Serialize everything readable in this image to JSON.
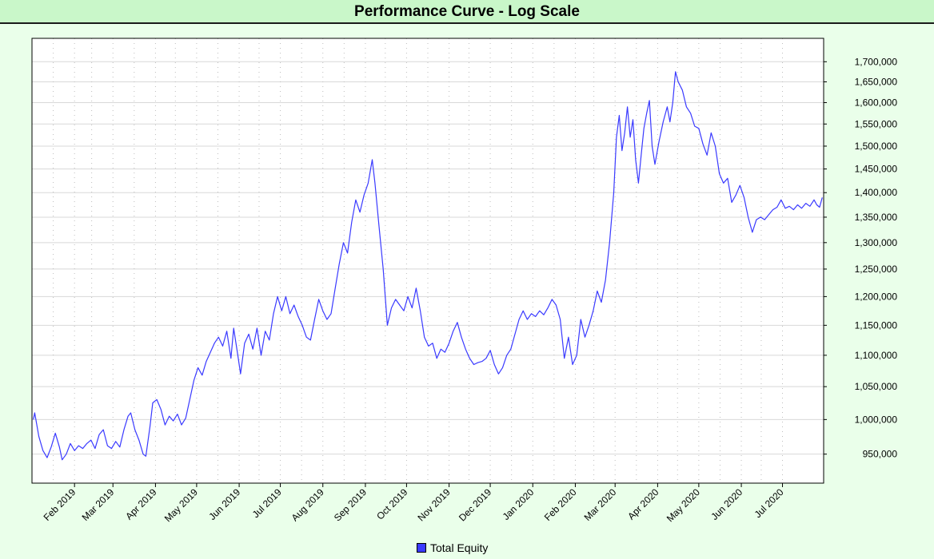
{
  "header": {
    "title": "Performance Curve - Log Scale"
  },
  "legend": {
    "label": "Total Equity",
    "color": "#3a3aff"
  },
  "chart_data": {
    "type": "line",
    "title": "Performance Curve - Log Scale",
    "yscale": "log",
    "ylim": [
      910000,
      1760000
    ],
    "grid": true,
    "legend_position": "bottom-center",
    "line_color": "#3a3aff",
    "yticks": [
      950000,
      1000000,
      1050000,
      1100000,
      1150000,
      1200000,
      1250000,
      1300000,
      1350000,
      1400000,
      1450000,
      1500000,
      1550000,
      1600000,
      1650000,
      1700000
    ],
    "ytick_labels": [
      "950,000",
      "1,000,000",
      "1,050,000",
      "1,100,000",
      "1,150,000",
      "1,200,000",
      "1,250,000",
      "1,300,000",
      "1,350,000",
      "1,400,000",
      "1,450,000",
      "1,500,000",
      "1,550,000",
      "1,600,000",
      "1,650,000",
      "1,700,000"
    ],
    "xlim": [
      "2019-01-01",
      "2020-07-31"
    ],
    "xticks": [
      "2019-02-01",
      "2019-03-01",
      "2019-04-01",
      "2019-05-01",
      "2019-06-01",
      "2019-07-01",
      "2019-08-01",
      "2019-09-01",
      "2019-10-01",
      "2019-11-01",
      "2019-12-01",
      "2020-01-01",
      "2020-02-01",
      "2020-03-01",
      "2020-04-01",
      "2020-05-01",
      "2020-06-01",
      "2020-07-01"
    ],
    "xtick_labels": [
      "Feb 2019",
      "Mar 2019",
      "Apr 2019",
      "May 2019",
      "Jun 2019",
      "Jul 2019",
      "Aug 2019",
      "Sep 2019",
      "Oct 2019",
      "Nov 2019",
      "Dec 2019",
      "Jan 2020",
      "Feb 2020",
      "Mar 2020",
      "Apr 2020",
      "May 2020",
      "Jun 2020",
      "Jul 2020"
    ],
    "series": [
      {
        "name": "Total Equity",
        "points": [
          [
            "2019-01-02",
            1000000
          ],
          [
            "2019-01-03",
            1010000
          ],
          [
            "2019-01-06",
            975000
          ],
          [
            "2019-01-09",
            955000
          ],
          [
            "2019-01-12",
            945000
          ],
          [
            "2019-01-15",
            960000
          ],
          [
            "2019-01-18",
            980000
          ],
          [
            "2019-01-21",
            960000
          ],
          [
            "2019-01-23",
            942000
          ],
          [
            "2019-01-26",
            950000
          ],
          [
            "2019-01-29",
            965000
          ],
          [
            "2019-02-01",
            955000
          ],
          [
            "2019-02-04",
            962000
          ],
          [
            "2019-02-07",
            958000
          ],
          [
            "2019-02-10",
            965000
          ],
          [
            "2019-02-13",
            970000
          ],
          [
            "2019-02-16",
            958000
          ],
          [
            "2019-02-19",
            978000
          ],
          [
            "2019-02-22",
            985000
          ],
          [
            "2019-02-25",
            962000
          ],
          [
            "2019-02-28",
            958000
          ],
          [
            "2019-03-03",
            968000
          ],
          [
            "2019-03-06",
            960000
          ],
          [
            "2019-03-09",
            985000
          ],
          [
            "2019-03-12",
            1005000
          ],
          [
            "2019-03-14",
            1010000
          ],
          [
            "2019-03-17",
            985000
          ],
          [
            "2019-03-20",
            970000
          ],
          [
            "2019-03-23",
            950000
          ],
          [
            "2019-03-25",
            947000
          ],
          [
            "2019-03-28",
            990000
          ],
          [
            "2019-03-30",
            1025000
          ],
          [
            "2019-04-02",
            1030000
          ],
          [
            "2019-04-05",
            1015000
          ],
          [
            "2019-04-08",
            992000
          ],
          [
            "2019-04-11",
            1005000
          ],
          [
            "2019-04-14",
            998000
          ],
          [
            "2019-04-17",
            1008000
          ],
          [
            "2019-04-20",
            992000
          ],
          [
            "2019-04-23",
            1002000
          ],
          [
            "2019-04-26",
            1030000
          ],
          [
            "2019-04-29",
            1060000
          ],
          [
            "2019-05-02",
            1080000
          ],
          [
            "2019-05-05",
            1068000
          ],
          [
            "2019-05-08",
            1090000
          ],
          [
            "2019-05-11",
            1105000
          ],
          [
            "2019-05-14",
            1120000
          ],
          [
            "2019-05-17",
            1130000
          ],
          [
            "2019-05-20",
            1115000
          ],
          [
            "2019-05-23",
            1140000
          ],
          [
            "2019-05-26",
            1095000
          ],
          [
            "2019-05-28",
            1145000
          ],
          [
            "2019-05-31",
            1100000
          ],
          [
            "2019-06-02",
            1070000
          ],
          [
            "2019-06-05",
            1120000
          ],
          [
            "2019-06-08",
            1135000
          ],
          [
            "2019-06-11",
            1110000
          ],
          [
            "2019-06-14",
            1145000
          ],
          [
            "2019-06-17",
            1100000
          ],
          [
            "2019-06-20",
            1140000
          ],
          [
            "2019-06-23",
            1125000
          ],
          [
            "2019-06-26",
            1170000
          ],
          [
            "2019-06-29",
            1200000
          ],
          [
            "2019-07-02",
            1175000
          ],
          [
            "2019-07-05",
            1200000
          ],
          [
            "2019-07-08",
            1170000
          ],
          [
            "2019-07-11",
            1185000
          ],
          [
            "2019-07-14",
            1165000
          ],
          [
            "2019-07-17",
            1150000
          ],
          [
            "2019-07-20",
            1130000
          ],
          [
            "2019-07-23",
            1125000
          ],
          [
            "2019-07-26",
            1160000
          ],
          [
            "2019-07-29",
            1195000
          ],
          [
            "2019-08-01",
            1175000
          ],
          [
            "2019-08-04",
            1160000
          ],
          [
            "2019-08-07",
            1170000
          ],
          [
            "2019-08-10",
            1215000
          ],
          [
            "2019-08-13",
            1260000
          ],
          [
            "2019-08-16",
            1300000
          ],
          [
            "2019-08-19",
            1280000
          ],
          [
            "2019-08-22",
            1340000
          ],
          [
            "2019-08-25",
            1385000
          ],
          [
            "2019-08-28",
            1360000
          ],
          [
            "2019-08-31",
            1395000
          ],
          [
            "2019-09-03",
            1420000
          ],
          [
            "2019-09-06",
            1470000
          ],
          [
            "2019-09-08",
            1420000
          ],
          [
            "2019-09-11",
            1330000
          ],
          [
            "2019-09-14",
            1250000
          ],
          [
            "2019-09-17",
            1150000
          ],
          [
            "2019-09-20",
            1180000
          ],
          [
            "2019-09-23",
            1195000
          ],
          [
            "2019-09-26",
            1185000
          ],
          [
            "2019-09-29",
            1175000
          ],
          [
            "2019-10-02",
            1200000
          ],
          [
            "2019-10-05",
            1180000
          ],
          [
            "2019-10-08",
            1215000
          ],
          [
            "2019-10-11",
            1175000
          ],
          [
            "2019-10-14",
            1130000
          ],
          [
            "2019-10-17",
            1115000
          ],
          [
            "2019-10-20",
            1120000
          ],
          [
            "2019-10-23",
            1095000
          ],
          [
            "2019-10-26",
            1110000
          ],
          [
            "2019-10-29",
            1105000
          ],
          [
            "2019-11-01",
            1120000
          ],
          [
            "2019-11-04",
            1140000
          ],
          [
            "2019-11-07",
            1155000
          ],
          [
            "2019-11-10",
            1130000
          ],
          [
            "2019-11-13",
            1110000
          ],
          [
            "2019-11-16",
            1095000
          ],
          [
            "2019-11-19",
            1085000
          ],
          [
            "2019-11-22",
            1088000
          ],
          [
            "2019-11-25",
            1090000
          ],
          [
            "2019-11-28",
            1095000
          ],
          [
            "2019-12-01",
            1108000
          ],
          [
            "2019-12-04",
            1085000
          ],
          [
            "2019-12-07",
            1070000
          ],
          [
            "2019-12-10",
            1080000
          ],
          [
            "2019-12-13",
            1100000
          ],
          [
            "2019-12-16",
            1110000
          ],
          [
            "2019-12-19",
            1135000
          ],
          [
            "2019-12-22",
            1160000
          ],
          [
            "2019-12-25",
            1175000
          ],
          [
            "2019-12-28",
            1160000
          ],
          [
            "2019-12-31",
            1170000
          ],
          [
            "2020-01-03",
            1165000
          ],
          [
            "2020-01-06",
            1175000
          ],
          [
            "2020-01-09",
            1168000
          ],
          [
            "2020-01-12",
            1180000
          ],
          [
            "2020-01-15",
            1195000
          ],
          [
            "2020-01-18",
            1185000
          ],
          [
            "2020-01-21",
            1160000
          ],
          [
            "2020-01-24",
            1095000
          ],
          [
            "2020-01-27",
            1130000
          ],
          [
            "2020-01-30",
            1085000
          ],
          [
            "2020-02-02",
            1100000
          ],
          [
            "2020-02-05",
            1160000
          ],
          [
            "2020-02-08",
            1130000
          ],
          [
            "2020-02-11",
            1150000
          ],
          [
            "2020-02-14",
            1175000
          ],
          [
            "2020-02-17",
            1210000
          ],
          [
            "2020-02-20",
            1190000
          ],
          [
            "2020-02-23",
            1230000
          ],
          [
            "2020-02-26",
            1300000
          ],
          [
            "2020-02-29",
            1400000
          ],
          [
            "2020-03-02",
            1520000
          ],
          [
            "2020-03-04",
            1570000
          ],
          [
            "2020-03-06",
            1490000
          ],
          [
            "2020-03-08",
            1530000
          ],
          [
            "2020-03-10",
            1590000
          ],
          [
            "2020-03-12",
            1520000
          ],
          [
            "2020-03-14",
            1560000
          ],
          [
            "2020-03-16",
            1470000
          ],
          [
            "2020-03-18",
            1420000
          ],
          [
            "2020-03-20",
            1480000
          ],
          [
            "2020-03-22",
            1540000
          ],
          [
            "2020-03-24",
            1575000
          ],
          [
            "2020-03-26",
            1605000
          ],
          [
            "2020-03-28",
            1500000
          ],
          [
            "2020-03-30",
            1460000
          ],
          [
            "2020-04-02",
            1510000
          ],
          [
            "2020-04-05",
            1555000
          ],
          [
            "2020-04-08",
            1590000
          ],
          [
            "2020-04-10",
            1555000
          ],
          [
            "2020-04-12",
            1600000
          ],
          [
            "2020-04-14",
            1675000
          ],
          [
            "2020-04-16",
            1650000
          ],
          [
            "2020-04-19",
            1630000
          ],
          [
            "2020-04-22",
            1590000
          ],
          [
            "2020-04-25",
            1575000
          ],
          [
            "2020-04-28",
            1545000
          ],
          [
            "2020-05-01",
            1540000
          ],
          [
            "2020-05-04",
            1505000
          ],
          [
            "2020-05-07",
            1480000
          ],
          [
            "2020-05-10",
            1530000
          ],
          [
            "2020-05-13",
            1500000
          ],
          [
            "2020-05-16",
            1440000
          ],
          [
            "2020-05-19",
            1420000
          ],
          [
            "2020-05-22",
            1430000
          ],
          [
            "2020-05-25",
            1380000
          ],
          [
            "2020-05-28",
            1395000
          ],
          [
            "2020-05-31",
            1415000
          ],
          [
            "2020-06-03",
            1390000
          ],
          [
            "2020-06-06",
            1350000
          ],
          [
            "2020-06-09",
            1320000
          ],
          [
            "2020-06-12",
            1345000
          ],
          [
            "2020-06-15",
            1350000
          ],
          [
            "2020-06-18",
            1345000
          ],
          [
            "2020-06-21",
            1355000
          ],
          [
            "2020-06-24",
            1365000
          ],
          [
            "2020-06-27",
            1370000
          ],
          [
            "2020-06-30",
            1385000
          ],
          [
            "2020-07-03",
            1368000
          ],
          [
            "2020-07-06",
            1372000
          ],
          [
            "2020-07-09",
            1365000
          ],
          [
            "2020-07-12",
            1375000
          ],
          [
            "2020-07-15",
            1368000
          ],
          [
            "2020-07-18",
            1378000
          ],
          [
            "2020-07-21",
            1372000
          ],
          [
            "2020-07-24",
            1385000
          ],
          [
            "2020-07-26",
            1375000
          ],
          [
            "2020-07-28",
            1370000
          ],
          [
            "2020-07-30",
            1390000
          ]
        ]
      }
    ]
  }
}
